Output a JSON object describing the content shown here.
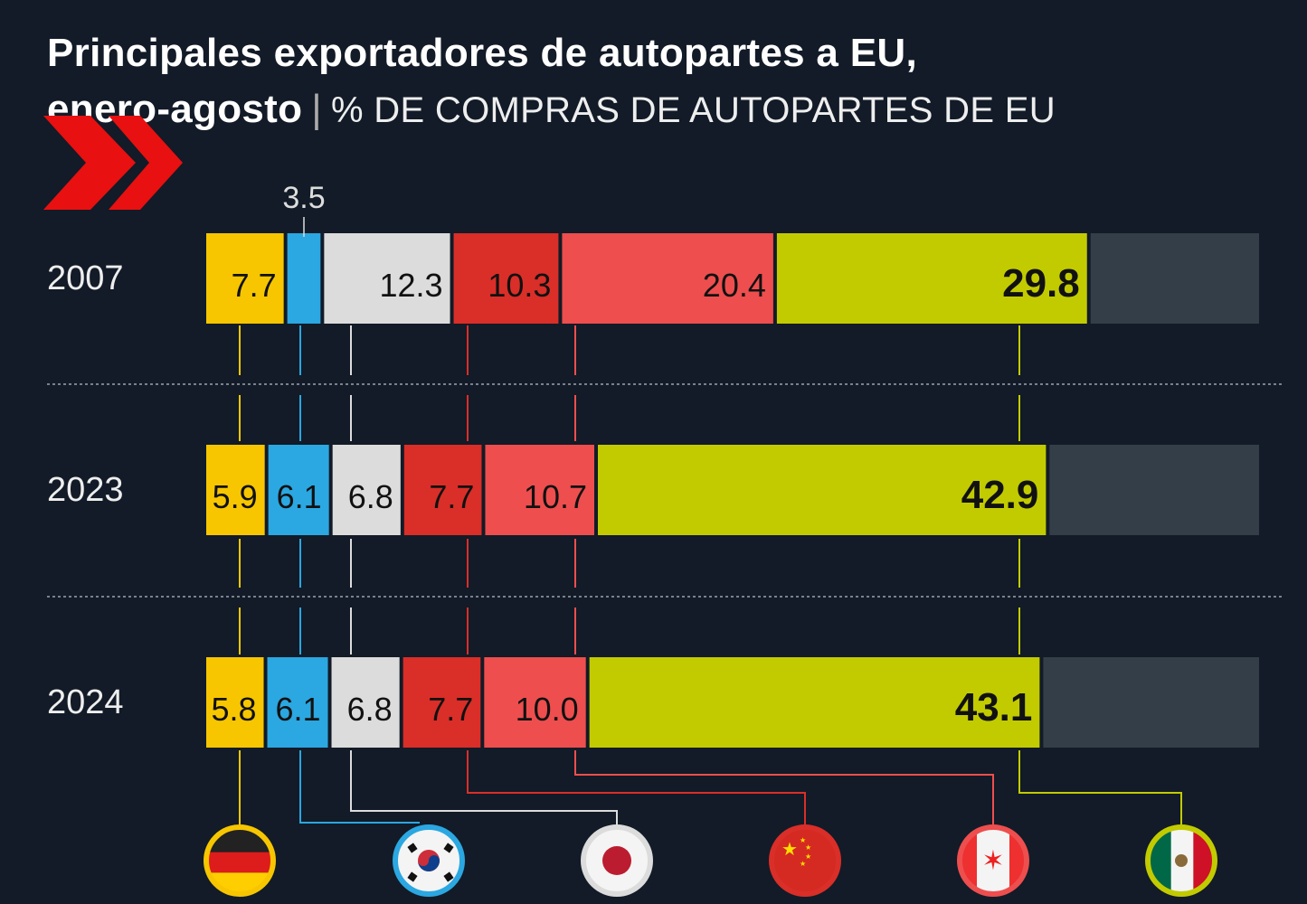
{
  "chart_data": {
    "type": "bar",
    "orientation": "horizontal-stacked",
    "title": "Principales exportadores de autopartes a EU,",
    "title_line2": "enero-agosto",
    "subtitle": "% DE COMPRAS DE AUTOPARTES DE EU",
    "categories": [
      "2007",
      "2023",
      "2024"
    ],
    "xlim": [
      0,
      100
    ],
    "series": [
      {
        "name": "Alemania",
        "color": "#f7c600",
        "values": [
          7.7,
          5.9,
          5.8
        ],
        "labels": [
          "7.7",
          "5.9",
          "5.8"
        ]
      },
      {
        "name": "Corea del Sur",
        "color": "#2ba7e1",
        "values": [
          3.5,
          6.1,
          6.1
        ],
        "labels": [
          "3.5",
          "6.1",
          "6.1"
        ]
      },
      {
        "name": "Japón",
        "color": "#dcdcdc",
        "values": [
          12.3,
          6.8,
          6.8
        ],
        "labels": [
          "12.3",
          "6.8",
          "6.8"
        ]
      },
      {
        "name": "China",
        "color": "#da2e28",
        "values": [
          10.3,
          7.7,
          7.7
        ],
        "labels": [
          "10.3",
          "7.7",
          "7.7"
        ]
      },
      {
        "name": "Canadá",
        "color": "#ee4e4e",
        "values": [
          20.4,
          10.7,
          10.0
        ],
        "labels": [
          "20.4",
          "10.7",
          "10.0"
        ]
      },
      {
        "name": "México",
        "color": "#c2cb00",
        "values": [
          29.8,
          42.9,
          43.1
        ],
        "labels": [
          "29.8",
          "42.9",
          "43.1"
        ]
      }
    ],
    "other_color": "#343e48",
    "grid": false,
    "legend": "bottom (flag icons)"
  }
}
